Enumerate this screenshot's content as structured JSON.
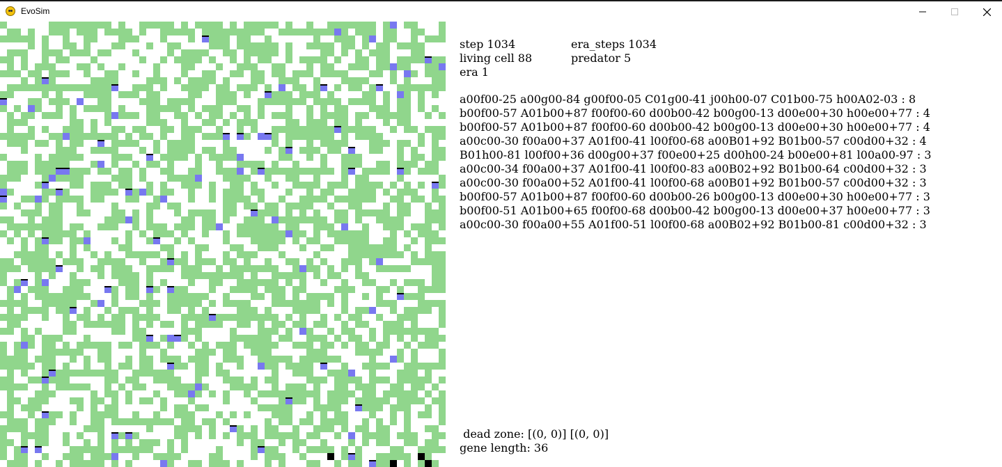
{
  "window": {
    "title": "EvoSim"
  },
  "stats": {
    "step": "step 1034",
    "era_steps": "era_steps 1034",
    "living_cell": "living cell 88",
    "predator": "predator 5",
    "era": "era 1"
  },
  "genes": [
    "a00f00-25 a00g00-84 g00f00-05 C01g00-41 j00h00-07 C01b00-75 h00A02-03 : 8",
    "b00f00-57 A01b00+87 f00f00-60 d00b00-42 b00g00-13 d00e00+30 h00e00+77 : 4",
    "b00f00-57 A01b00+87 f00f00-60 d00b00-42 b00g00-13 d00e00+30 h00e00+77 : 4",
    "a00c00-30 f00a00+37 A01f00-41 l00f00-68 a00B01+92 B01b00-57 c00d00+32 : 4",
    "B01h00-81 l00f00+36 d00g00+37 f00e00+25 d00h00-24 b00e00+81 l00a00-97 : 3",
    "a00c00-34 f00a00+37 A01f00-41 l00f00-83 a00B02+92 B01b00-64 c00d00+32 : 3",
    "a00c00-30 f00a00+52 A01f00-41 l00f00-68 a00B01+92 B01b00-57 c00d00+32 : 3",
    "b00f00-57 A01b00+87 f00f00-60 d00b00-26 b00g00-13 d00e00+30 h00e00+77 : 3",
    "b00f00-51 A01b00+65 f00f00-68 d00b00-42 b00g00-13 d00e00+37 h00e00+77 : 3",
    "a00c00-30 f00a00+55 A01f00-51 l00f00-68 a00B02+92 B01b00-81 c00d00+32 : 3"
  ],
  "footer": {
    "dead_zone": " dead zone: [(0, 0)] [(0, 0)]",
    "gene_length": "gene length: 36"
  },
  "colors": {
    "food": "#90d68c",
    "cell": "#7878f0",
    "predator": "#000000",
    "background": "#ffffff"
  },
  "icons": {
    "app": "python-icon",
    "minimize": "minimize-icon",
    "maximize": "maximize-icon",
    "close": "close-icon"
  }
}
